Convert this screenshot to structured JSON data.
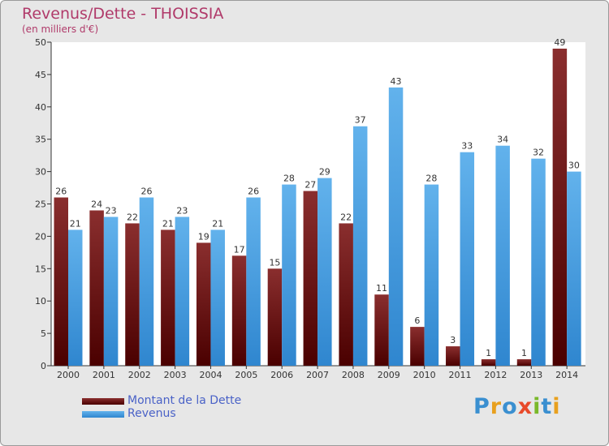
{
  "colors": {
    "dette_top": "#8a2e2e",
    "dette_bottom": "#4a0000",
    "revenus_top": "#62b2ec",
    "revenus_bottom": "#2f86cf",
    "title": "#b03a6a",
    "legend_text": "#4a62c7",
    "background": "#e7e7e7",
    "plot_background": "#ffffff"
  },
  "logo": {
    "text": "Proxiti",
    "letter_colors": [
      "#3a8fd0",
      "#e8a01e",
      "#3a8fd0",
      "#e84a2a",
      "#7ab82a",
      "#3a8fd0",
      "#e8a01e"
    ]
  },
  "chart_data": {
    "type": "bar",
    "title": "Revenus/Dette - THOISSIA",
    "subtitle": "(en milliers d'€)",
    "categories": [
      "2000",
      "2001",
      "2002",
      "2003",
      "2004",
      "2005",
      "2006",
      "2007",
      "2008",
      "2009",
      "2010",
      "2011",
      "2012",
      "2013",
      "2014"
    ],
    "series": [
      {
        "name": "Montant de la Dette",
        "values": [
          26,
          24,
          22,
          21,
          19,
          17,
          15,
          27,
          22,
          11,
          6,
          3,
          1,
          1,
          49
        ]
      },
      {
        "name": "Revenus",
        "values": [
          21,
          23,
          26,
          23,
          21,
          26,
          28,
          29,
          37,
          43,
          28,
          33,
          34,
          32,
          30
        ]
      }
    ],
    "ylim": [
      0,
      50
    ],
    "yticks": [
      0,
      5,
      10,
      15,
      20,
      25,
      30,
      35,
      40,
      45,
      50
    ],
    "grid": false,
    "legend_position": "bottom-left",
    "data_labels": true
  }
}
